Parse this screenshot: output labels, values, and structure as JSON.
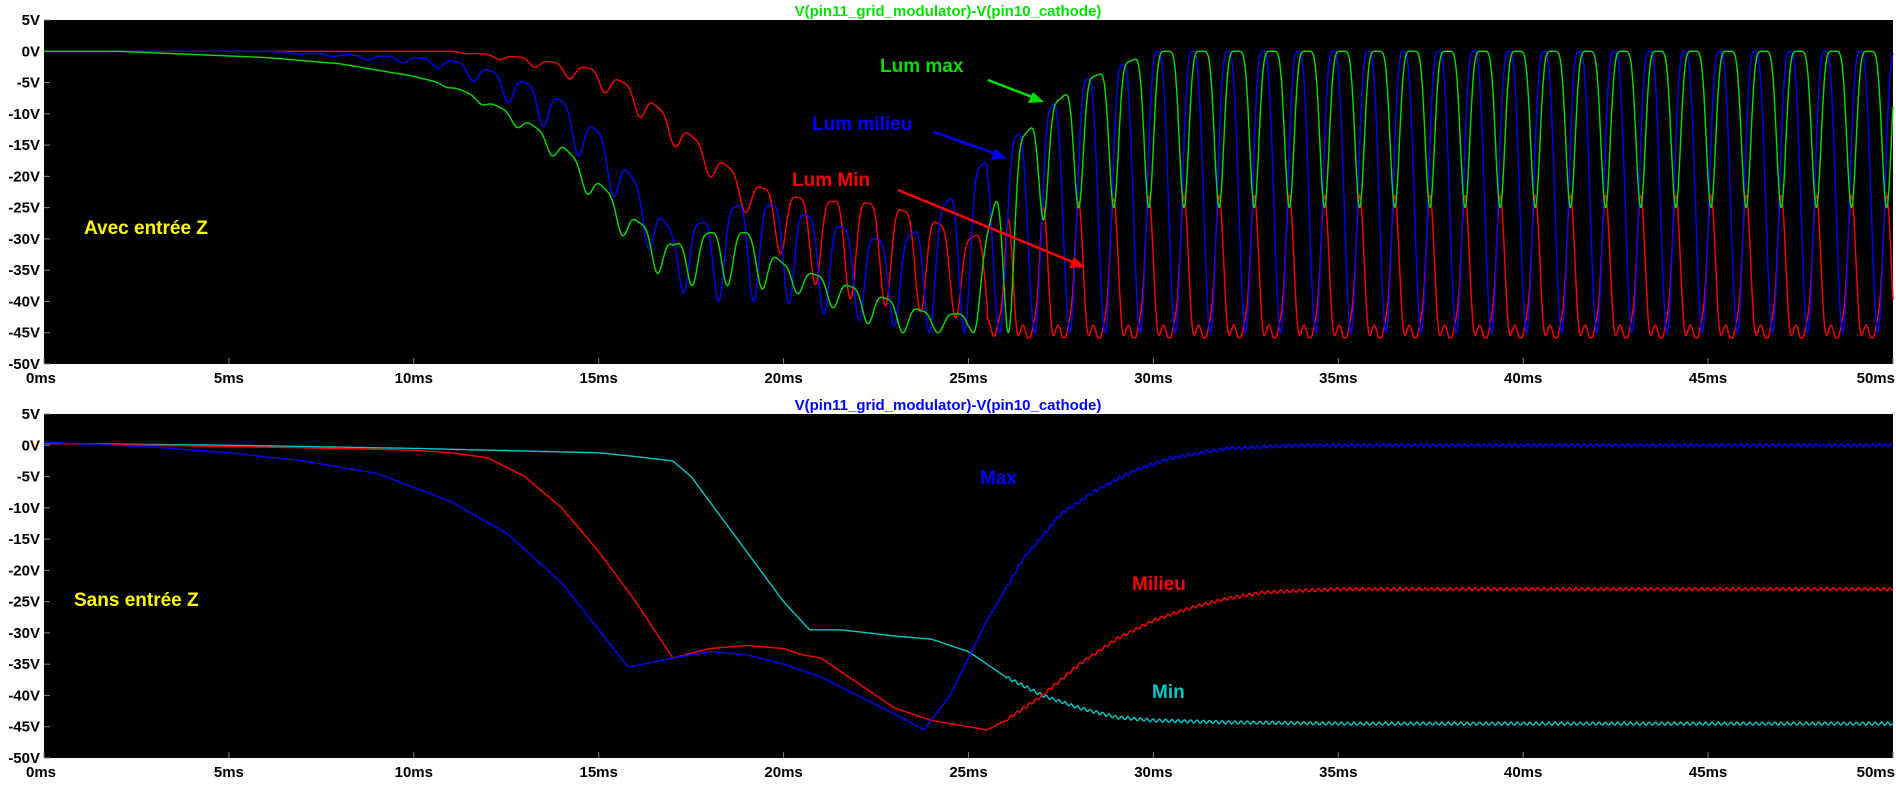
{
  "charts": [
    {
      "chart_data": {
        "type": "line",
        "title": "V(pin11_grid_modulator)-V(pin10_cathode)",
        "title_color": "#00e000",
        "xlim": [
          0,
          50
        ],
        "ylim": [
          -50,
          5
        ],
        "x_ticks": [
          "0ms",
          "5ms",
          "10ms",
          "15ms",
          "20ms",
          "25ms",
          "30ms",
          "35ms",
          "40ms",
          "45ms",
          "50ms"
        ],
        "y_ticks": [
          "5V",
          "0V",
          "-5V",
          "-10V",
          "-15V",
          "-20V",
          "-25V",
          "-30V",
          "-35V",
          "-40V",
          "-45V",
          "-50V"
        ],
        "grid": false,
        "x": [
          0,
          2,
          4,
          6,
          8,
          10,
          11,
          12,
          13,
          14,
          15,
          16,
          17,
          18,
          19,
          20,
          21,
          22,
          23,
          24,
          25,
          26,
          27,
          28,
          30,
          35,
          40,
          45,
          50
        ],
        "series": [
          {
            "color": "#00e000",
            "upper": [
              0,
              0,
              -0.5,
              -1,
              -2,
              -4,
              -5.5,
              -8,
              -11,
              -15,
              -21,
              -27,
              -31,
              -29,
              -29,
              -34,
              -36,
              -38,
              -40,
              -42,
              -42,
              -17,
              -10,
              -5,
              0,
              0,
              0,
              0,
              0
            ],
            "lower": [
              0,
              0,
              -0.5,
              -1,
              -2,
              -4,
              -6,
              -9,
              -13,
              -18,
              -25,
              -32,
              -38,
              -37,
              -38,
              -38,
              -40,
              -43,
              -45,
              -45,
              -45,
              -45,
              -45,
              -45,
              -45,
              -45,
              -45,
              -45,
              -45
            ],
            "min_level": [
              0,
              0,
              -0.5,
              -1,
              -2,
              -4,
              -6,
              -9,
              -13,
              -18,
              -25,
              -32,
              -38,
              -37,
              -38,
              -38,
              -40,
              -43,
              -45,
              -45,
              -45,
              -30,
              -27,
              -25,
              -25,
              -25,
              -25,
              -25,
              -25
            ]
          },
          {
            "color": "#0000ff",
            "upper": [
              0,
              0,
              0,
              0,
              -0.5,
              -1,
              -1.5,
              -3,
              -5,
              -8,
              -13,
              -21,
              -29,
              -27,
              -24,
              -25,
              -27,
              -29,
              -31,
              -27,
              -20,
              -15,
              -10,
              -5,
              0,
              0,
              0,
              0,
              0
            ],
            "lower": [
              0,
              0,
              0,
              0,
              -1,
              -2,
              -3,
              -6,
              -10,
              -14,
              -20,
              -28,
              -38,
              -40,
              -40,
              -40,
              -42,
              -43,
              -44,
              -45,
              -45,
              -45,
              -45,
              -45,
              -45,
              -45,
              -45,
              -45,
              -45
            ]
          },
          {
            "color": "#ff0000",
            "upper": [
              0,
              0,
              0,
              0,
              0,
              0,
              0,
              -0.5,
              -1,
              -2,
              -3,
              -6,
              -11,
              -16,
              -21,
              -23,
              -24,
              -24,
              -25,
              -27,
              -30,
              -27,
              -25,
              -24,
              -23,
              -23,
              -23,
              -23,
              -23
            ],
            "lower": [
              0,
              0,
              0,
              0,
              0,
              0,
              0,
              -1,
              -2,
              -4,
              -6,
              -10,
              -15,
              -20,
              -26,
              -33,
              -38,
              -40,
              -41,
              -42,
              -43,
              -45,
              -45,
              -45,
              -45,
              -45,
              -45,
              -45,
              -45
            ]
          }
        ]
      },
      "labels": [
        {
          "text": "Avec entrée Z",
          "color": "#ffff00"
        },
        {
          "text": "Lum max",
          "color": "#00e000"
        },
        {
          "text": "Lum milieu",
          "color": "#0000ff"
        },
        {
          "text": "Lum Min",
          "color": "#ff0000"
        }
      ]
    },
    {
      "chart_data": {
        "type": "line",
        "title": "V(pin11_grid_modulator)-V(pin10_cathode)",
        "title_color": "#0000ff",
        "xlim": [
          0,
          50
        ],
        "ylim": [
          -50,
          5
        ],
        "x_ticks": [
          "0ms",
          "5ms",
          "10ms",
          "15ms",
          "20ms",
          "25ms",
          "30ms",
          "35ms",
          "40ms",
          "45ms",
          "50ms"
        ],
        "y_ticks": [
          "5V",
          "0V",
          "-5V",
          "-10V",
          "-15V",
          "-20V",
          "-25V",
          "-30V",
          "-35V",
          "-40V",
          "-45V",
          "-50V"
        ],
        "grid": false,
        "series": [
          {
            "color": "#0000ff",
            "x": [
              0,
              3,
              5,
              7,
              9,
              11,
              12.5,
              14,
              15.8,
              17,
              18,
              19,
              20,
              21,
              22,
              23,
              23.8,
              24.5,
              25.5,
              26.5,
              27.5,
              28.5,
              29.5,
              30.5,
              32,
              34,
              36,
              40,
              45,
              50
            ],
            "y": [
              0.5,
              -0.3,
              -1.2,
              -2.5,
              -4.5,
              -9,
              -14,
              -22,
              -35.5,
              -34,
              -33,
              -33.5,
              -35,
              -37,
              -40,
              -43,
              -45.5,
              -40,
              -28,
              -18,
              -11,
              -7,
              -4,
              -2,
              -0.5,
              0,
              0,
              0,
              0,
              0
            ]
          },
          {
            "color": "#ff0000",
            "x": [
              0,
              5,
              8,
              10,
              11,
              12,
              13,
              14,
              15,
              16,
              17,
              18,
              19,
              20,
              20.5,
              21,
              22,
              23,
              24,
              25,
              25.5,
              26,
              27,
              28,
              29,
              30,
              31,
              32,
              33,
              35,
              40,
              45,
              50
            ],
            "y": [
              0.3,
              -0.2,
              -0.5,
              -0.8,
              -1.2,
              -2,
              -5,
              -10,
              -17,
              -25,
              -34,
              -32.5,
              -32,
              -32.5,
              -33.5,
              -34,
              -38,
              -42,
              -44,
              -45,
              -45.5,
              -44,
              -40,
              -35,
              -31,
              -28,
              -26,
              -24.5,
              -23.5,
              -23,
              -23,
              -23,
              -23
            ]
          },
          {
            "color": "#00c8c8",
            "x": [
              0,
              5,
              10,
              15,
              16,
              17,
              17.5,
              18,
              19,
              20,
              20.7,
              21.5,
              22,
              23,
              24,
              25,
              26,
              27,
              28,
              29,
              30,
              32,
              35,
              40,
              45,
              50
            ],
            "y": [
              0.3,
              0,
              -0.5,
              -1.2,
              -1.8,
              -2.5,
              -5,
              -9,
              -17,
              -25,
              -29.5,
              -29.5,
              -29.8,
              -30.5,
              -31,
              -33,
              -37,
              -40,
              -42,
              -43.5,
              -44,
              -44.3,
              -44.5,
              -44.5,
              -44.5,
              -44.5
            ]
          }
        ]
      },
      "labels": [
        {
          "text": "Sans entrée Z",
          "color": "#ffff00"
        },
        {
          "text": "Max",
          "color": "#0000ff"
        },
        {
          "text": "Milieu",
          "color": "#ff0000"
        },
        {
          "text": "Min",
          "color": "#00c8c8"
        }
      ]
    }
  ]
}
